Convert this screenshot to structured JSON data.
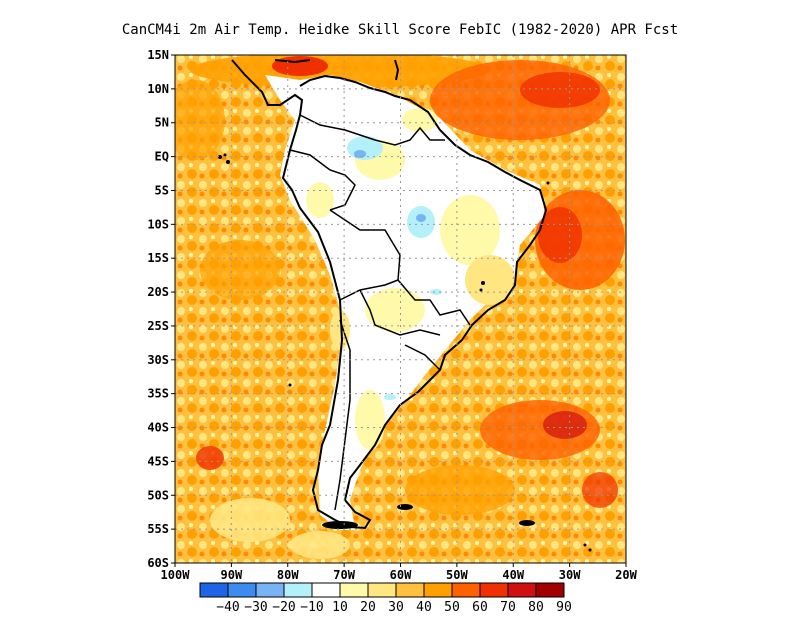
{
  "title": "CanCM4i  2m Air Temp. Heidke Skill Score FebIC (1982-2020) APR Fcst",
  "map": {
    "lat_labels": [
      "15N",
      "10N",
      "5N",
      "EQ",
      "5S",
      "10S",
      "15S",
      "20S",
      "25S",
      "30S",
      "35S",
      "40S",
      "45S",
      "50S",
      "55S",
      "60S"
    ],
    "lon_labels": [
      "100W",
      "90W",
      "80W",
      "70W",
      "60W",
      "50W",
      "40W",
      "30W",
      "20W"
    ],
    "gridlines": "dotted"
  },
  "colorbar": {
    "labels": [
      "-40",
      "-30",
      "-20",
      "-10",
      "10",
      "20",
      "30",
      "40",
      "50",
      "60",
      "70",
      "80",
      "90"
    ],
    "colors": [
      "#1e64e6",
      "#3c8cf0",
      "#78b4f5",
      "#b4f0fa",
      "#ffffff",
      "#fffaaa",
      "#ffe680",
      "#ffc040",
      "#ffa000",
      "#ff6000",
      "#f03000",
      "#d01010",
      "#a00000"
    ]
  },
  "colors": {
    "land_outline": "#000000",
    "grid": "#999999",
    "frame": "#000000"
  }
}
